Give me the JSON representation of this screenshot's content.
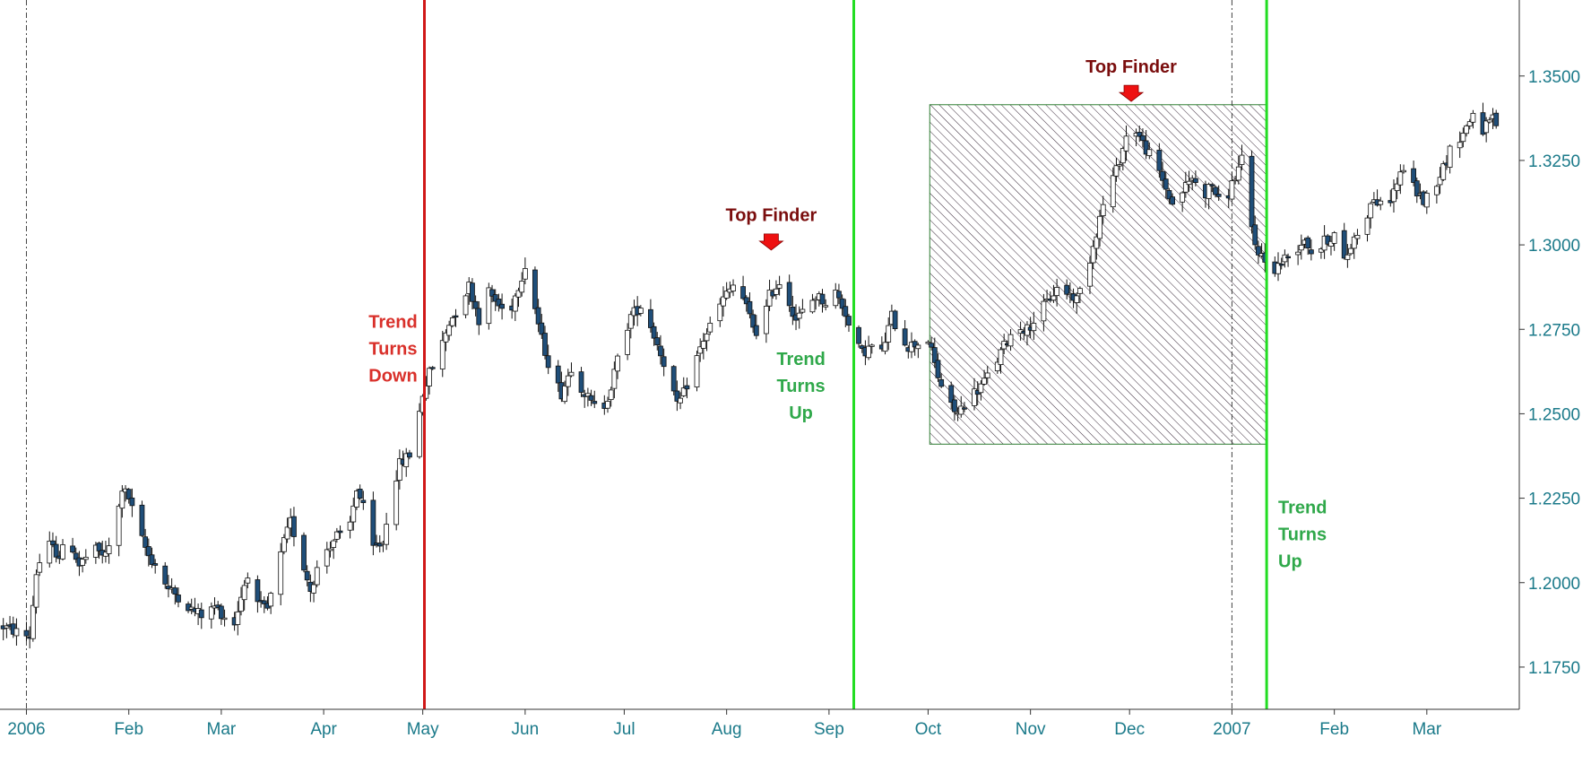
{
  "colors": {
    "background": "#ffffff",
    "axis_text": "#1b7a8a",
    "candle_down": "#1f4e79",
    "candle_up": "#ffffff",
    "candle_outline": "#111111",
    "trend_down_line": "#d01818",
    "trend_up_line": "#22dd22",
    "trend_down_text": "#d9302a",
    "trend_up_text": "#2fa84a",
    "top_finder_text": "#7a0d0d",
    "top_finder_marker": "#ee1111",
    "hatch_box_border": "#2e7d32",
    "hatch_lines": "#3a2a3a"
  },
  "chart_data": {
    "type": "candlestick",
    "title": "",
    "xlabel": "",
    "ylabel": "",
    "ylim": [
      1.1625,
      1.3725
    ],
    "y_ticks": [
      "1.1750",
      "1.2000",
      "1.2250",
      "1.2500",
      "1.2750",
      "1.3000",
      "1.3250",
      "1.3500"
    ],
    "x_ticks": [
      {
        "label": "2006",
        "day": 0
      },
      {
        "label": "Feb",
        "day": 31
      },
      {
        "label": "Mar",
        "day": 59
      },
      {
        "label": "Apr",
        "day": 90
      },
      {
        "label": "May",
        "day": 120
      },
      {
        "label": "Jun",
        "day": 151
      },
      {
        "label": "Jul",
        "day": 181
      },
      {
        "label": "Aug",
        "day": 212
      },
      {
        "label": "Sep",
        "day": 243
      },
      {
        "label": "Oct",
        "day": 273
      },
      {
        "label": "Nov",
        "day": 304
      },
      {
        "label": "Dec",
        "day": 334
      },
      {
        "label": "2007",
        "day": 365
      },
      {
        "label": "Feb",
        "day": 396
      },
      {
        "label": "Mar",
        "day": 424
      }
    ],
    "x_day_range": [
      -8,
      452
    ],
    "year_separators": [
      0,
      365
    ],
    "price_anchors": [
      [
        -7,
        1.187
      ],
      [
        -2,
        1.185
      ],
      [
        1,
        1.184
      ],
      [
        3,
        1.203
      ],
      [
        6,
        1.212
      ],
      [
        10,
        1.208
      ],
      [
        13,
        1.213
      ],
      [
        16,
        1.205
      ],
      [
        20,
        1.21
      ],
      [
        24,
        1.208
      ],
      [
        27,
        1.216
      ],
      [
        29,
        1.228
      ],
      [
        31,
        1.225
      ],
      [
        34,
        1.215
      ],
      [
        37,
        1.208
      ],
      [
        40,
        1.204
      ],
      [
        43,
        1.198
      ],
      [
        46,
        1.196
      ],
      [
        50,
        1.192
      ],
      [
        54,
        1.19
      ],
      [
        57,
        1.193
      ],
      [
        60,
        1.19
      ],
      [
        63,
        1.188
      ],
      [
        65,
        1.196
      ],
      [
        67,
        1.203
      ],
      [
        70,
        1.193
      ],
      [
        73,
        1.192
      ],
      [
        75,
        1.2
      ],
      [
        78,
        1.212
      ],
      [
        80,
        1.218
      ],
      [
        83,
        1.208
      ],
      [
        86,
        1.198
      ],
      [
        88,
        1.204
      ],
      [
        91,
        1.21
      ],
      [
        94,
        1.214
      ],
      [
        97,
        1.212
      ],
      [
        100,
        1.228
      ],
      [
        102,
        1.222
      ],
      [
        105,
        1.21
      ],
      [
        108,
        1.212
      ],
      [
        110,
        1.225
      ],
      [
        113,
        1.235
      ],
      [
        116,
        1.238
      ],
      [
        118,
        1.245
      ],
      [
        120,
        1.256
      ],
      [
        122,
        1.262
      ],
      [
        125,
        1.268
      ],
      [
        128,
        1.277
      ],
      [
        131,
        1.282
      ],
      [
        134,
        1.288
      ],
      [
        137,
        1.278
      ],
      [
        140,
        1.286
      ],
      [
        143,
        1.282
      ],
      [
        146,
        1.279
      ],
      [
        149,
        1.288
      ],
      [
        151,
        1.294
      ],
      [
        153,
        1.286
      ],
      [
        156,
        1.272
      ],
      [
        159,
        1.262
      ],
      [
        162,
        1.256
      ],
      [
        165,
        1.264
      ],
      [
        168,
        1.258
      ],
      [
        171,
        1.253
      ],
      [
        174,
        1.25
      ],
      [
        177,
        1.258
      ],
      [
        180,
        1.27
      ],
      [
        183,
        1.279
      ],
      [
        186,
        1.282
      ],
      [
        189,
        1.276
      ],
      [
        192,
        1.268
      ],
      [
        195,
        1.26
      ],
      [
        197,
        1.252
      ],
      [
        199,
        1.256
      ],
      [
        202,
        1.264
      ],
      [
        205,
        1.272
      ],
      [
        208,
        1.278
      ],
      [
        211,
        1.284
      ],
      [
        214,
        1.288
      ],
      [
        217,
        1.284
      ],
      [
        220,
        1.276
      ],
      [
        222,
        1.273
      ],
      [
        225,
        1.285
      ],
      [
        228,
        1.289
      ],
      [
        231,
        1.283
      ],
      [
        233,
        1.278
      ],
      [
        236,
        1.281
      ],
      [
        239,
        1.285
      ],
      [
        242,
        1.283
      ],
      [
        245,
        1.286
      ],
      [
        248,
        1.28
      ],
      [
        250,
        1.272
      ],
      [
        253,
        1.268
      ],
      [
        256,
        1.27
      ],
      [
        259,
        1.268
      ],
      [
        262,
        1.279
      ],
      [
        264,
        1.274
      ],
      [
        267,
        1.27
      ],
      [
        270,
        1.271
      ],
      [
        273,
        1.272
      ],
      [
        276,
        1.261
      ],
      [
        279,
        1.253
      ],
      [
        282,
        1.25
      ],
      [
        285,
        1.255
      ],
      [
        288,
        1.257
      ],
      [
        291,
        1.261
      ],
      [
        294,
        1.266
      ],
      [
        297,
        1.272
      ],
      [
        300,
        1.276
      ],
      [
        303,
        1.275
      ],
      [
        306,
        1.279
      ],
      [
        309,
        1.283
      ],
      [
        312,
        1.287
      ],
      [
        315,
        1.286
      ],
      [
        318,
        1.284
      ],
      [
        321,
        1.292
      ],
      [
        324,
        1.304
      ],
      [
        327,
        1.316
      ],
      [
        330,
        1.322
      ],
      [
        333,
        1.332
      ],
      [
        335,
        1.336
      ],
      [
        338,
        1.33
      ],
      [
        341,
        1.325
      ],
      [
        344,
        1.319
      ],
      [
        347,
        1.312
      ],
      [
        350,
        1.316
      ],
      [
        353,
        1.32
      ],
      [
        356,
        1.314
      ],
      [
        359,
        1.318
      ],
      [
        362,
        1.31
      ],
      [
        365,
        1.318
      ],
      [
        368,
        1.325
      ],
      [
        370,
        1.309
      ],
      [
        372,
        1.3
      ],
      [
        375,
        1.295
      ],
      [
        378,
        1.293
      ],
      [
        381,
        1.296
      ],
      [
        384,
        1.298
      ],
      [
        387,
        1.302
      ],
      [
        390,
        1.296
      ],
      [
        393,
        1.301
      ],
      [
        396,
        1.303
      ],
      [
        399,
        1.295
      ],
      [
        402,
        1.302
      ],
      [
        405,
        1.307
      ],
      [
        408,
        1.314
      ],
      [
        411,
        1.31
      ],
      [
        414,
        1.316
      ],
      [
        417,
        1.323
      ],
      [
        420,
        1.317
      ],
      [
        423,
        1.313
      ],
      [
        426,
        1.317
      ],
      [
        429,
        1.323
      ],
      [
        432,
        1.33
      ],
      [
        435,
        1.333
      ],
      [
        438,
        1.339
      ],
      [
        441,
        1.334
      ],
      [
        444,
        1.337
      ],
      [
        446,
        1.334
      ]
    ],
    "vertical_lines": [
      {
        "day": 120.5,
        "kind": "trend_down"
      },
      {
        "day": 250.5,
        "kind": "trend_up"
      },
      {
        "day": 375.5,
        "kind": "trend_up"
      }
    ],
    "hatch_box": {
      "day_start": 273.5,
      "day_end": 375.5,
      "price_low": 1.241,
      "price_high": 1.3415
    },
    "annotations": [
      {
        "lines": [
          "Trend",
          "Turns",
          "Down"
        ],
        "kind": "trend_down",
        "day": 111,
        "price": 1.2755,
        "anchor": "middle"
      },
      {
        "lines": [
          "Trend",
          "Turns",
          "Up"
        ],
        "kind": "trend_up",
        "day": 234.5,
        "price": 1.2645,
        "anchor": "middle"
      },
      {
        "lines": [
          "Trend",
          "Turns",
          "Up"
        ],
        "kind": "trend_up",
        "day": 379,
        "price": 1.2205,
        "anchor": "start"
      },
      {
        "lines": [
          "Top Finder"
        ],
        "kind": "top_finder",
        "day": 225.5,
        "price": 1.307,
        "anchor": "middle",
        "marker_price": 1.299
      },
      {
        "lines": [
          "Top Finder"
        ],
        "kind": "top_finder",
        "day": 334.5,
        "price": 1.351,
        "anchor": "middle",
        "marker_price": 1.343
      }
    ]
  }
}
